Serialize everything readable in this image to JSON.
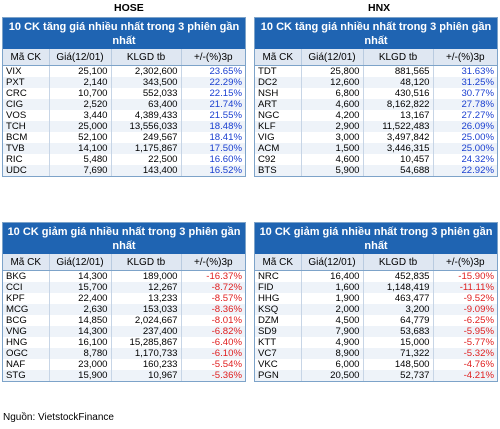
{
  "exchanges": {
    "left": "HOSE",
    "right": "HNX"
  },
  "headers": [
    "Mã CK",
    "Giá(12/01)",
    "KLGD tb",
    "+/-(%)3p"
  ],
  "hose_gain": {
    "title": "10 CK tăng giá nhiều nhất trong 3 phiên gần nhất",
    "rows": [
      [
        "VIX",
        "25,100",
        "2,302,600",
        "23.65%"
      ],
      [
        "PXT",
        "2,140",
        "343,500",
        "22.29%"
      ],
      [
        "CRC",
        "10,700",
        "552,033",
        "22.15%"
      ],
      [
        "CIG",
        "2,520",
        "63,400",
        "21.74%"
      ],
      [
        "VOS",
        "3,440",
        "4,389,433",
        "21.55%"
      ],
      [
        "TCH",
        "25,000",
        "13,556,033",
        "18.48%"
      ],
      [
        "BCM",
        "52,100",
        "249,567",
        "18.41%"
      ],
      [
        "TVB",
        "14,100",
        "1,175,867",
        "17.50%"
      ],
      [
        "RIC",
        "5,480",
        "22,500",
        "16.60%"
      ],
      [
        "UDC",
        "7,690",
        "143,400",
        "16.52%"
      ]
    ]
  },
  "hnx_gain": {
    "title": "10 CK tăng giá nhiều nhất trong 3 phiên gần nhất",
    "rows": [
      [
        "TDT",
        "25,800",
        "881,565",
        "31.63%"
      ],
      [
        "DC2",
        "12,600",
        "48,120",
        "31.25%"
      ],
      [
        "NSH",
        "6,800",
        "430,516",
        "30.77%"
      ],
      [
        "ART",
        "4,600",
        "8,162,822",
        "27.78%"
      ],
      [
        "NGC",
        "4,200",
        "13,167",
        "27.27%"
      ],
      [
        "KLF",
        "2,900",
        "11,522,483",
        "26.09%"
      ],
      [
        "VIG",
        "3,000",
        "3,497,842",
        "25.00%"
      ],
      [
        "ACM",
        "1,500",
        "3,446,315",
        "25.00%"
      ],
      [
        "C92",
        "4,600",
        "10,457",
        "24.32%"
      ],
      [
        "BTS",
        "5,900",
        "54,688",
        "22.92%"
      ]
    ]
  },
  "hose_loss": {
    "title": "10 CK giảm giá nhiều nhất trong 3 phiên gần nhất",
    "rows": [
      [
        "BKG",
        "14,300",
        "189,000",
        "-16.37%"
      ],
      [
        "CCI",
        "15,700",
        "12,267",
        "-8.72%"
      ],
      [
        "KPF",
        "22,400",
        "13,233",
        "-8.57%"
      ],
      [
        "MCG",
        "2,630",
        "153,033",
        "-8.36%"
      ],
      [
        "BCG",
        "14,850",
        "2,024,667",
        "-8.01%"
      ],
      [
        "VNG",
        "14,300",
        "237,400",
        "-6.82%"
      ],
      [
        "HNG",
        "16,100",
        "15,285,867",
        "-6.40%"
      ],
      [
        "OGC",
        "8,780",
        "1,170,733",
        "-6.10%"
      ],
      [
        "NAF",
        "23,000",
        "160,233",
        "-5.54%"
      ],
      [
        "STG",
        "15,900",
        "10,967",
        "-5.36%"
      ]
    ]
  },
  "hnx_loss": {
    "title": "10 CK giảm giá nhiều nhất trong 3 phiên gần nhất",
    "rows": [
      [
        "NRC",
        "16,400",
        "452,835",
        "-15.90%"
      ],
      [
        "FID",
        "1,600",
        "1,148,419",
        "-11.11%"
      ],
      [
        "HHG",
        "1,900",
        "463,477",
        "-9.52%"
      ],
      [
        "KSQ",
        "2,000",
        "3,200",
        "-9.09%"
      ],
      [
        "DZM",
        "4,500",
        "64,779",
        "-6.25%"
      ],
      [
        "SD9",
        "7,900",
        "53,683",
        "-5.95%"
      ],
      [
        "KTT",
        "4,900",
        "15,000",
        "-5.77%"
      ],
      [
        "VC7",
        "8,900",
        "71,322",
        "-5.32%"
      ],
      [
        "VKC",
        "6,000",
        "148,500",
        "-4.76%"
      ],
      [
        "PGN",
        "20,500",
        "52,737",
        "-4.21%"
      ]
    ]
  },
  "source": "Nguồn: VietstockFinance",
  "colors": {
    "banner": "#1f64b2",
    "up": "#1a3fd0",
    "down": "#e02020"
  }
}
